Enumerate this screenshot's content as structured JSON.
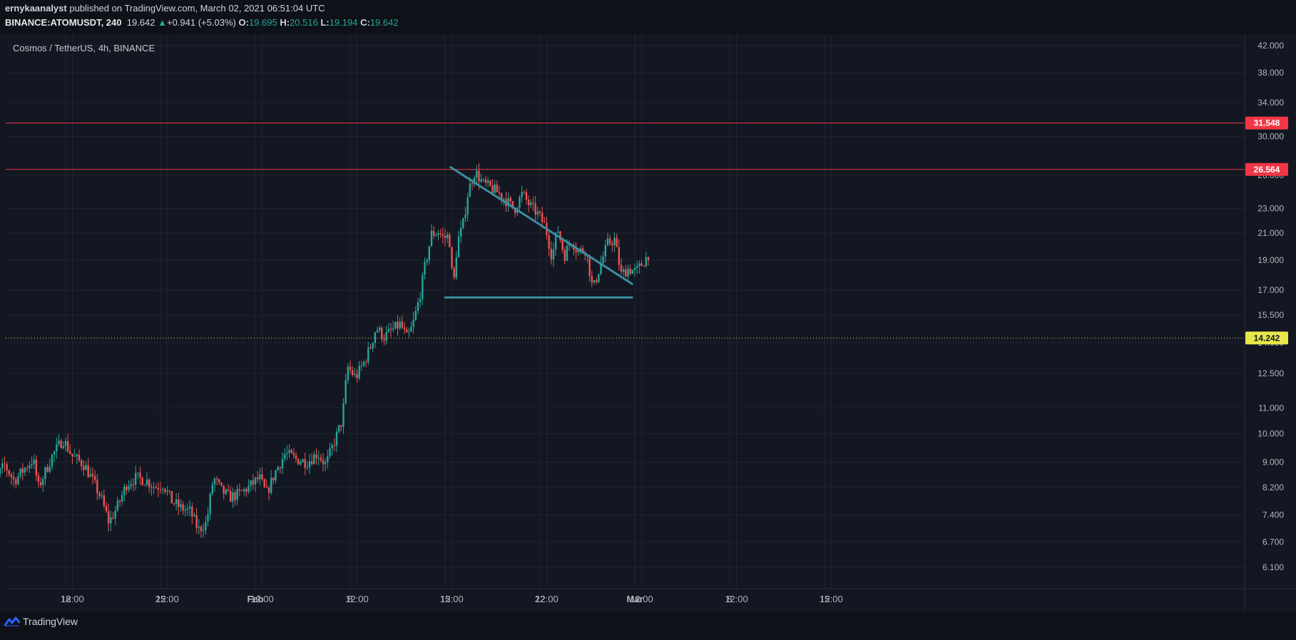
{
  "header": {
    "author": "ernykaanalyst",
    "published": " published on TradingView.com, March 02, 2021 06:51:04 UTC",
    "symbol": "BINANCE:ATOMUSDT, 240",
    "last": "19.642",
    "change": "+0.941 (+5.03%)",
    "o_label": "O:",
    "o": "19.695",
    "h_label": "H:",
    "h": "20.516",
    "l_label": "L:",
    "l": "19.194",
    "c_label": "C:",
    "c": "19.642",
    "up_color": "#26a69a"
  },
  "footer": {
    "brand": "TradingView"
  },
  "colors": {
    "background": "#131722",
    "grid": "#1f2430",
    "up": "#26a69a",
    "down": "#ef5350",
    "resistance": "#f23645",
    "support_dotted": "#e8e84a",
    "pattern": "#3a8fa0"
  },
  "chart_data": {
    "type": "candlestick",
    "title": "Cosmos / TetherUS, 4h, BINANCE",
    "y_scale": "log",
    "ylim": [
      5.5,
      44
    ],
    "y_ticks": [
      "42.000",
      "38.000",
      "34.000",
      "30.000",
      "26.000",
      "23.000",
      "21.000",
      "19.000",
      "17.000",
      "15.500",
      "14.000",
      "12.500",
      "11.000",
      "10.000",
      "9.000",
      "8.200",
      "7.400",
      "6.700",
      "6.100"
    ],
    "x_ticks": [
      {
        "label": "18",
        "day": 18
      },
      {
        "label": "12:00",
        "day": 18.5
      },
      {
        "label": "25",
        "day": 25
      },
      {
        "label": "12:00",
        "day": 25.5
      },
      {
        "label": "Feb",
        "day": 32
      },
      {
        "label": "12:00",
        "day": 32.5
      },
      {
        "label": "8",
        "day": 39
      },
      {
        "label": "12:00",
        "day": 39.5
      },
      {
        "label": "15",
        "day": 46
      },
      {
        "label": "12:00",
        "day": 46.5
      },
      {
        "label": "22",
        "day": 53
      },
      {
        "label": "12:00",
        "day": 53.5
      },
      {
        "label": "Mar",
        "day": 60
      },
      {
        "label": "12:00",
        "day": 60.5
      },
      {
        "label": "8",
        "day": 67
      },
      {
        "label": "12:00",
        "day": 67.5
      },
      {
        "label": "15",
        "day": 74
      },
      {
        "label": "12:00",
        "day": 74.5
      }
    ],
    "price_levels": [
      {
        "name": "resistance-1",
        "value": 31.548,
        "label": "31.548",
        "style": "solid"
      },
      {
        "name": "resistance-2",
        "value": 26.564,
        "label": "26.564",
        "style": "solid"
      },
      {
        "name": "current",
        "value": 14.242,
        "label": "14.242",
        "style": "dotted"
      }
    ],
    "pattern": {
      "type": "descending-triangle",
      "upper": [
        [
          46.4,
          26.8
        ],
        [
          59.8,
          17.4
        ]
      ],
      "lower": [
        [
          46.0,
          16.55
        ],
        [
          59.8,
          16.55
        ]
      ]
    },
    "close_anchors": [
      [
        12.0,
        7.0
      ],
      [
        12.6,
        8.3
      ],
      [
        13.5,
        8.9
      ],
      [
        14.2,
        8.4
      ],
      [
        15.0,
        8.8
      ],
      [
        15.6,
        9.1
      ],
      [
        16.0,
        8.2
      ],
      [
        17.0,
        9.2
      ],
      [
        17.8,
        9.8
      ],
      [
        18.5,
        9.2
      ],
      [
        19.4,
        8.9
      ],
      [
        20.0,
        8.4
      ],
      [
        20.6,
        7.9
      ],
      [
        21.2,
        7.2
      ],
      [
        21.9,
        7.7
      ],
      [
        22.5,
        8.3
      ],
      [
        23.2,
        8.5
      ],
      [
        24.0,
        8.4
      ],
      [
        24.6,
        8.2
      ],
      [
        25.2,
        8.3
      ],
      [
        25.8,
        7.8
      ],
      [
        26.5,
        7.6
      ],
      [
        27.2,
        7.5
      ],
      [
        27.8,
        7.0
      ],
      [
        28.4,
        7.2
      ],
      [
        28.9,
        8.5
      ],
      [
        29.5,
        8.1
      ],
      [
        30.1,
        7.9
      ],
      [
        30.8,
        8.0
      ],
      [
        31.5,
        8.2
      ],
      [
        32.3,
        8.5
      ],
      [
        32.8,
        8.0
      ],
      [
        33.5,
        8.7
      ],
      [
        34.2,
        9.3
      ],
      [
        35.0,
        9.1
      ],
      [
        35.8,
        9.0
      ],
      [
        36.6,
        9.3
      ],
      [
        37.2,
        8.9
      ],
      [
        37.9,
        9.8
      ],
      [
        38.4,
        10.5
      ],
      [
        38.8,
        12.8
      ],
      [
        39.4,
        12.3
      ],
      [
        40.0,
        13.0
      ],
      [
        40.5,
        13.8
      ],
      [
        40.9,
        14.8
      ],
      [
        41.5,
        14.3
      ],
      [
        42.0,
        14.6
      ],
      [
        42.7,
        15.0
      ],
      [
        43.2,
        14.2
      ],
      [
        43.6,
        14.9
      ],
      [
        44.1,
        16.5
      ],
      [
        44.5,
        18.5
      ],
      [
        45.0,
        20.9
      ],
      [
        45.5,
        21.1
      ],
      [
        45.9,
        20.6
      ],
      [
        46.3,
        20.8
      ],
      [
        46.6,
        17.0
      ],
      [
        46.9,
        20.3
      ],
      [
        47.3,
        21.5
      ],
      [
        47.7,
        24.5
      ],
      [
        48.2,
        26.4
      ],
      [
        48.8,
        25.2
      ],
      [
        49.4,
        24.8
      ],
      [
        50.0,
        24.3
      ],
      [
        50.6,
        23.6
      ],
      [
        51.1,
        22.9
      ],
      [
        51.7,
        24.3
      ],
      [
        52.2,
        23.3
      ],
      [
        52.8,
        22.6
      ],
      [
        53.4,
        21.5
      ],
      [
        53.9,
        19.2
      ],
      [
        54.3,
        21.4
      ],
      [
        54.8,
        19.3
      ],
      [
        55.3,
        20.5
      ],
      [
        55.8,
        19.6
      ],
      [
        56.4,
        19.8
      ],
      [
        56.9,
        17.0
      ],
      [
        57.4,
        18.5
      ],
      [
        58.0,
        20.2
      ],
      [
        58.5,
        20.5
      ],
      [
        59.0,
        18.0
      ],
      [
        59.5,
        18.4
      ],
      [
        60.1,
        18.2
      ],
      [
        60.8,
        19.1
      ],
      [
        61.1,
        19.6
      ]
    ]
  }
}
